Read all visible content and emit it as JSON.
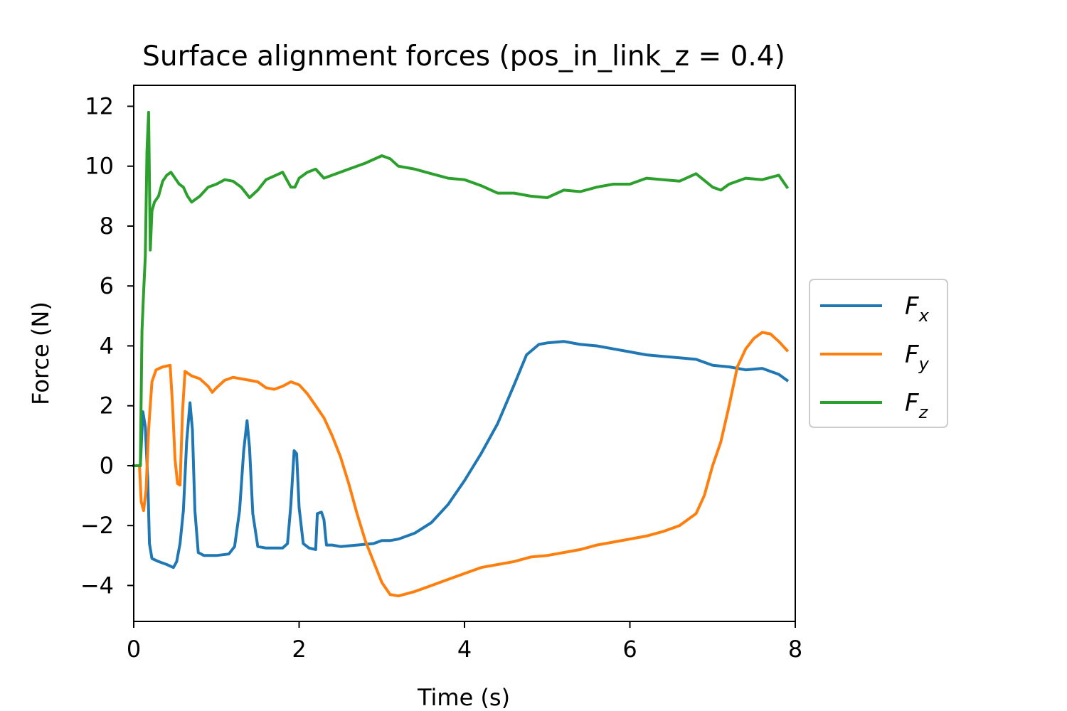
{
  "chart_data": {
    "type": "line",
    "title": "Surface alignment forces (pos_in_link_z = 0.4)",
    "xlabel": "Time (s)",
    "ylabel": "Force (N)",
    "xlim": [
      0,
      8
    ],
    "ylim": [
      -5.2,
      12.7
    ],
    "xticks": [
      0,
      2,
      4,
      6,
      8
    ],
    "xtick_labels": [
      "0",
      "2",
      "4",
      "6",
      "8"
    ],
    "yticks": [
      -4,
      -2,
      0,
      2,
      4,
      6,
      8,
      10,
      12
    ],
    "ytick_labels": [
      "−4",
      "−2",
      "0",
      "2",
      "4",
      "6",
      "8",
      "10",
      "12"
    ],
    "grid": false,
    "legend_position": "outside-right",
    "series": [
      {
        "name": "F_x",
        "legend_main": "F",
        "legend_sub": "x",
        "color": "#1f77b4",
        "points": [
          [
            0,
            0
          ],
          [
            0.08,
            0
          ],
          [
            0.11,
            1.8
          ],
          [
            0.14,
            1.3
          ],
          [
            0.17,
            -0.5
          ],
          [
            0.19,
            -2.6
          ],
          [
            0.22,
            -3.1
          ],
          [
            0.3,
            -3.2
          ],
          [
            0.4,
            -3.3
          ],
          [
            0.48,
            -3.4
          ],
          [
            0.52,
            -3.2
          ],
          [
            0.56,
            -2.6
          ],
          [
            0.6,
            -1.5
          ],
          [
            0.64,
            0.8
          ],
          [
            0.68,
            2.1
          ],
          [
            0.71,
            1.2
          ],
          [
            0.74,
            -1.5
          ],
          [
            0.78,
            -2.9
          ],
          [
            0.85,
            -3.0
          ],
          [
            1.0,
            -3.0
          ],
          [
            1.15,
            -2.95
          ],
          [
            1.22,
            -2.7
          ],
          [
            1.28,
            -1.5
          ],
          [
            1.33,
            0.5
          ],
          [
            1.37,
            1.5
          ],
          [
            1.4,
            0.6
          ],
          [
            1.44,
            -1.6
          ],
          [
            1.5,
            -2.7
          ],
          [
            1.6,
            -2.75
          ],
          [
            1.8,
            -2.75
          ],
          [
            1.86,
            -2.6
          ],
          [
            1.9,
            -1.3
          ],
          [
            1.94,
            0.5
          ],
          [
            1.97,
            0.4
          ],
          [
            2.0,
            -1.4
          ],
          [
            2.05,
            -2.6
          ],
          [
            2.12,
            -2.75
          ],
          [
            2.2,
            -2.8
          ],
          [
            2.22,
            -1.6
          ],
          [
            2.27,
            -1.55
          ],
          [
            2.3,
            -1.8
          ],
          [
            2.33,
            -2.65
          ],
          [
            2.4,
            -2.65
          ],
          [
            2.5,
            -2.7
          ],
          [
            2.7,
            -2.65
          ],
          [
            2.9,
            -2.6
          ],
          [
            3.0,
            -2.5
          ],
          [
            3.1,
            -2.5
          ],
          [
            3.2,
            -2.45
          ],
          [
            3.4,
            -2.25
          ],
          [
            3.6,
            -1.9
          ],
          [
            3.8,
            -1.3
          ],
          [
            4.0,
            -0.5
          ],
          [
            4.2,
            0.4
          ],
          [
            4.4,
            1.4
          ],
          [
            4.6,
            2.7
          ],
          [
            4.75,
            3.7
          ],
          [
            4.9,
            4.05
          ],
          [
            5.0,
            4.1
          ],
          [
            5.2,
            4.15
          ],
          [
            5.4,
            4.05
          ],
          [
            5.6,
            4.0
          ],
          [
            5.8,
            3.9
          ],
          [
            6.0,
            3.8
          ],
          [
            6.2,
            3.7
          ],
          [
            6.4,
            3.65
          ],
          [
            6.6,
            3.6
          ],
          [
            6.8,
            3.55
          ],
          [
            7.0,
            3.35
          ],
          [
            7.2,
            3.3
          ],
          [
            7.4,
            3.2
          ],
          [
            7.6,
            3.25
          ],
          [
            7.8,
            3.05
          ],
          [
            7.9,
            2.85
          ]
        ]
      },
      {
        "name": "F_y",
        "legend_main": "F",
        "legend_sub": "y",
        "color": "#ff7f0e",
        "points": [
          [
            0,
            0
          ],
          [
            0.07,
            0
          ],
          [
            0.09,
            -1.2
          ],
          [
            0.12,
            -1.5
          ],
          [
            0.15,
            -0.8
          ],
          [
            0.18,
            1.2
          ],
          [
            0.22,
            2.8
          ],
          [
            0.27,
            3.2
          ],
          [
            0.35,
            3.3
          ],
          [
            0.44,
            3.35
          ],
          [
            0.47,
            2.0
          ],
          [
            0.5,
            0.2
          ],
          [
            0.53,
            -0.6
          ],
          [
            0.56,
            -0.65
          ],
          [
            0.59,
            1.8
          ],
          [
            0.62,
            3.15
          ],
          [
            0.7,
            3.0
          ],
          [
            0.8,
            2.9
          ],
          [
            0.9,
            2.65
          ],
          [
            0.95,
            2.45
          ],
          [
            1.0,
            2.6
          ],
          [
            1.1,
            2.85
          ],
          [
            1.2,
            2.95
          ],
          [
            1.4,
            2.85
          ],
          [
            1.5,
            2.8
          ],
          [
            1.6,
            2.6
          ],
          [
            1.7,
            2.55
          ],
          [
            1.8,
            2.65
          ],
          [
            1.9,
            2.8
          ],
          [
            2.0,
            2.7
          ],
          [
            2.1,
            2.4
          ],
          [
            2.2,
            2.0
          ],
          [
            2.3,
            1.6
          ],
          [
            2.4,
            1.0
          ],
          [
            2.5,
            0.3
          ],
          [
            2.6,
            -0.6
          ],
          [
            2.7,
            -1.6
          ],
          [
            2.8,
            -2.5
          ],
          [
            2.9,
            -3.2
          ],
          [
            3.0,
            -3.9
          ],
          [
            3.1,
            -4.3
          ],
          [
            3.2,
            -4.35
          ],
          [
            3.4,
            -4.2
          ],
          [
            3.6,
            -4.0
          ],
          [
            3.8,
            -3.8
          ],
          [
            4.0,
            -3.6
          ],
          [
            4.2,
            -3.4
          ],
          [
            4.4,
            -3.3
          ],
          [
            4.6,
            -3.2
          ],
          [
            4.8,
            -3.05
          ],
          [
            5.0,
            -3.0
          ],
          [
            5.2,
            -2.9
          ],
          [
            5.4,
            -2.8
          ],
          [
            5.6,
            -2.65
          ],
          [
            5.8,
            -2.55
          ],
          [
            6.0,
            -2.45
          ],
          [
            6.2,
            -2.35
          ],
          [
            6.4,
            -2.2
          ],
          [
            6.6,
            -2.0
          ],
          [
            6.8,
            -1.6
          ],
          [
            6.9,
            -1.0
          ],
          [
            7.0,
            0.0
          ],
          [
            7.1,
            0.8
          ],
          [
            7.2,
            2.0
          ],
          [
            7.3,
            3.3
          ],
          [
            7.4,
            3.9
          ],
          [
            7.5,
            4.25
          ],
          [
            7.6,
            4.45
          ],
          [
            7.7,
            4.4
          ],
          [
            7.8,
            4.15
          ],
          [
            7.9,
            3.85
          ]
        ]
      },
      {
        "name": "F_z",
        "legend_main": "F",
        "legend_sub": "z",
        "color": "#2ca02c",
        "points": [
          [
            0,
            0
          ],
          [
            0.08,
            0
          ],
          [
            0.1,
            4.5
          ],
          [
            0.12,
            5.8
          ],
          [
            0.14,
            7.0
          ],
          [
            0.16,
            10.5
          ],
          [
            0.18,
            11.8
          ],
          [
            0.2,
            7.2
          ],
          [
            0.22,
            8.5
          ],
          [
            0.25,
            8.8
          ],
          [
            0.3,
            9.0
          ],
          [
            0.35,
            9.5
          ],
          [
            0.4,
            9.7
          ],
          [
            0.45,
            9.8
          ],
          [
            0.5,
            9.6
          ],
          [
            0.55,
            9.4
          ],
          [
            0.6,
            9.3
          ],
          [
            0.65,
            9.0
          ],
          [
            0.7,
            8.8
          ],
          [
            0.8,
            9.0
          ],
          [
            0.9,
            9.3
          ],
          [
            1.0,
            9.4
          ],
          [
            1.1,
            9.55
          ],
          [
            1.2,
            9.5
          ],
          [
            1.3,
            9.3
          ],
          [
            1.4,
            8.95
          ],
          [
            1.5,
            9.2
          ],
          [
            1.6,
            9.55
          ],
          [
            1.8,
            9.8
          ],
          [
            1.9,
            9.3
          ],
          [
            1.95,
            9.3
          ],
          [
            2.0,
            9.6
          ],
          [
            2.1,
            9.8
          ],
          [
            2.2,
            9.9
          ],
          [
            2.3,
            9.6
          ],
          [
            2.4,
            9.7
          ],
          [
            2.6,
            9.9
          ],
          [
            2.8,
            10.1
          ],
          [
            3.0,
            10.35
          ],
          [
            3.1,
            10.25
          ],
          [
            3.2,
            10.0
          ],
          [
            3.4,
            9.9
          ],
          [
            3.6,
            9.75
          ],
          [
            3.8,
            9.6
          ],
          [
            4.0,
            9.55
          ],
          [
            4.2,
            9.35
          ],
          [
            4.4,
            9.1
          ],
          [
            4.6,
            9.1
          ],
          [
            4.8,
            9.0
          ],
          [
            5.0,
            8.95
          ],
          [
            5.2,
            9.2
          ],
          [
            5.4,
            9.15
          ],
          [
            5.6,
            9.3
          ],
          [
            5.8,
            9.4
          ],
          [
            6.0,
            9.4
          ],
          [
            6.2,
            9.6
          ],
          [
            6.4,
            9.55
          ],
          [
            6.6,
            9.5
          ],
          [
            6.8,
            9.75
          ],
          [
            7.0,
            9.3
          ],
          [
            7.1,
            9.2
          ],
          [
            7.2,
            9.4
          ],
          [
            7.4,
            9.6
          ],
          [
            7.6,
            9.55
          ],
          [
            7.8,
            9.7
          ],
          [
            7.9,
            9.3
          ]
        ]
      }
    ]
  }
}
